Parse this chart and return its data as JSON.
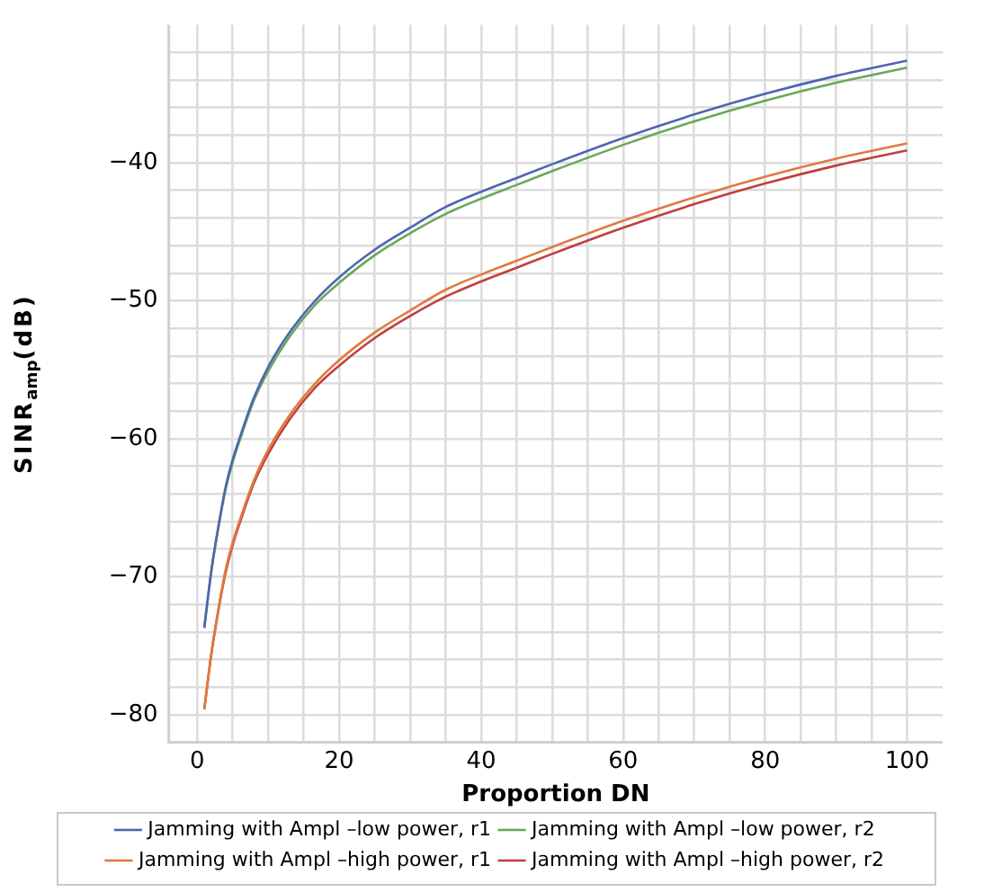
{
  "chart_data": {
    "type": "line",
    "xlabel": "Proportion DN",
    "ylabel": "SINR$_{amp}$(dB)",
    "x": [
      1,
      2,
      3,
      4,
      5,
      6,
      8,
      10,
      13,
      16.6,
      20,
      25,
      30,
      35,
      40,
      45,
      50,
      60,
      70,
      80,
      90,
      100
    ],
    "series": [
      {
        "name": "Jamming with Ampl –low power, r1",
        "color": "#4e66b0",
        "values": [
          -73.7,
          -69.5,
          -66.3,
          -63.5,
          -61.5,
          -59.9,
          -57,
          -54.8,
          -52.3,
          -50,
          -48.3,
          -46.3,
          -44.7,
          -43.2,
          -42.1,
          -41.1,
          -40.1,
          -38.2,
          -36.5,
          -35,
          -33.7,
          -32.6
        ]
      },
      {
        "name": "Jamming with Ampl –low power, r2",
        "color": "#6aa85a",
        "values": [
          -73.7,
          -69.6,
          -66.4,
          -63.7,
          -61.7,
          -60.1,
          -57.2,
          -55.1,
          -52.6,
          -50.3,
          -48.7,
          -46.7,
          -45.1,
          -43.7,
          -42.6,
          -41.6,
          -40.6,
          -38.7,
          -37,
          -35.5,
          -34.2,
          -33.1
        ]
      },
      {
        "name": "Jamming with Ampl –high power, r1",
        "color": "#e07a3e",
        "values": [
          -79.6,
          -75.5,
          -72.3,
          -69.5,
          -67.5,
          -65.9,
          -63,
          -60.8,
          -58.3,
          -56,
          -54.3,
          -52.3,
          -50.7,
          -49.2,
          -48.1,
          -47.1,
          -46.1,
          -44.2,
          -42.5,
          -41,
          -39.7,
          -38.6
        ]
      },
      {
        "name": "Jamming with Ampl –high power, r2",
        "color": "#c0403e",
        "values": [
          -79.6,
          -75.6,
          -72.4,
          -69.7,
          -67.7,
          -66.1,
          -63.2,
          -61.1,
          -58.6,
          -56.3,
          -54.7,
          -52.7,
          -51.1,
          -49.7,
          -48.6,
          -47.6,
          -46.6,
          -44.7,
          -43,
          -41.5,
          -40.2,
          -39.1
        ]
      }
    ],
    "xlim": [
      -4,
      105
    ],
    "xticks": [
      {
        "value": 0,
        "label": "0"
      },
      {
        "value": 5,
        "label": null
      },
      {
        "value": 10,
        "label": null
      },
      {
        "value": 15,
        "label": null
      },
      {
        "value": 20,
        "label": "20"
      },
      {
        "value": 25,
        "label": null
      },
      {
        "value": 30,
        "label": null
      },
      {
        "value": 35,
        "label": null
      },
      {
        "value": 40,
        "label": "40"
      },
      {
        "value": 45,
        "label": null
      },
      {
        "value": 50,
        "label": null
      },
      {
        "value": 55,
        "label": null
      },
      {
        "value": 60,
        "label": "60"
      },
      {
        "value": 65,
        "label": null
      },
      {
        "value": 70,
        "label": null
      },
      {
        "value": 75,
        "label": null
      },
      {
        "value": 80,
        "label": "80"
      },
      {
        "value": 85,
        "label": null
      },
      {
        "value": 90,
        "label": null
      },
      {
        "value": 95,
        "label": null
      },
      {
        "value": 100,
        "label": "100"
      }
    ],
    "ylim": [
      -82,
      -30
    ],
    "yticks": [
      {
        "value": -80,
        "label": "−80"
      },
      {
        "value": -78,
        "label": null
      },
      {
        "value": -76,
        "label": null
      },
      {
        "value": -74,
        "label": null
      },
      {
        "value": -72,
        "label": null
      },
      {
        "value": -70,
        "label": "−70"
      },
      {
        "value": -68,
        "label": null
      },
      {
        "value": -66,
        "label": null
      },
      {
        "value": -64,
        "label": null
      },
      {
        "value": -62,
        "label": null
      },
      {
        "value": -60,
        "label": "−60"
      },
      {
        "value": -58,
        "label": null
      },
      {
        "value": -56,
        "label": null
      },
      {
        "value": -54,
        "label": null
      },
      {
        "value": -52,
        "label": null
      },
      {
        "value": -50,
        "label": "−50"
      },
      {
        "value": -48,
        "label": null
      },
      {
        "value": -46,
        "label": null
      },
      {
        "value": -44,
        "label": null
      },
      {
        "value": -42,
        "label": null
      },
      {
        "value": -40,
        "label": "−40"
      },
      {
        "value": -38,
        "label": null
      },
      {
        "value": -36,
        "label": null
      },
      {
        "value": -34,
        "label": null
      },
      {
        "value": -32,
        "label": null
      }
    ],
    "grid": true,
    "legend": "bottom",
    "marker": "none",
    "line_style": "solid"
  }
}
